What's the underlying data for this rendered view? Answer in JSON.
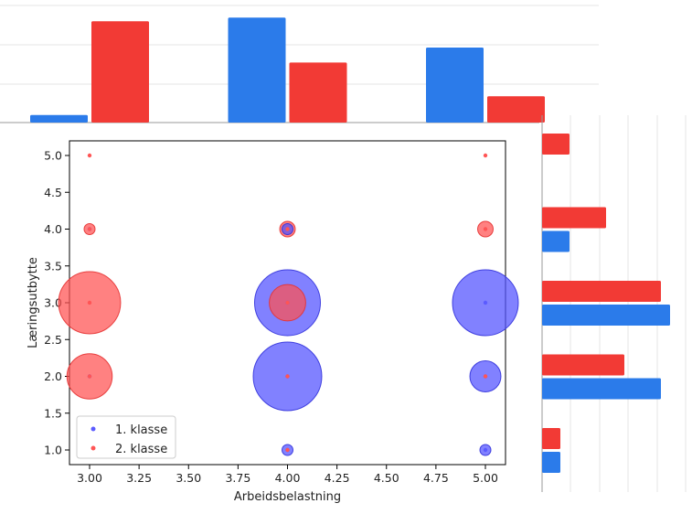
{
  "chart_data": [
    {
      "type": "scatter",
      "title": "",
      "xlabel": "Arbeidsbelastning",
      "ylabel": "Læringsutbytte",
      "xlim": [
        2.9,
        5.1
      ],
      "ylim": [
        0.8,
        5.2
      ],
      "x_ticks": [
        "3.00",
        "3.25",
        "3.50",
        "3.75",
        "4.00",
        "4.25",
        "4.50",
        "4.75",
        "5.00"
      ],
      "y_ticks": [
        "1.0",
        "1.5",
        "2.0",
        "2.5",
        "3.0",
        "3.5",
        "4.0",
        "4.5",
        "5.0"
      ],
      "grid": false,
      "legend_position": "lower-left",
      "note": "bubble area proportional to count; small dots mark each point",
      "series": [
        {
          "name": "1. klasse",
          "color": "#5b5bff",
          "points": [
            {
              "x": 3.0,
              "y": 2.0,
              "count": 0
            },
            {
              "x": 3.0,
              "y": 4.0,
              "count": 0
            },
            {
              "x": 4.0,
              "y": 1.0,
              "count": 1
            },
            {
              "x": 4.0,
              "y": 2.0,
              "count": 39
            },
            {
              "x": 4.0,
              "y": 3.0,
              "count": 36
            },
            {
              "x": 4.0,
              "y": 4.0,
              "count": 1
            },
            {
              "x": 5.0,
              "y": 1.0,
              "count": 1
            },
            {
              "x": 5.0,
              "y": 2.0,
              "count": 8
            },
            {
              "x": 5.0,
              "y": 3.0,
              "count": 36
            }
          ]
        },
        {
          "name": "2. klasse",
          "color": "#ff5555",
          "points": [
            {
              "x": 3.0,
              "y": 2.0,
              "count": 17
            },
            {
              "x": 3.0,
              "y": 3.0,
              "count": 32
            },
            {
              "x": 3.0,
              "y": 4.0,
              "count": 1
            },
            {
              "x": 3.0,
              "y": 5.0,
              "count": 0
            },
            {
              "x": 4.0,
              "y": 1.0,
              "count": 0
            },
            {
              "x": 4.0,
              "y": 2.0,
              "count": 0
            },
            {
              "x": 4.0,
              "y": 3.0,
              "count": 11
            },
            {
              "x": 4.0,
              "y": 4.0,
              "count": 2
            },
            {
              "x": 5.0,
              "y": 2.0,
              "count": 0
            },
            {
              "x": 5.0,
              "y": 4.0,
              "count": 2
            },
            {
              "x": 5.0,
              "y": 5.0,
              "count": 0
            }
          ]
        }
      ]
    },
    {
      "type": "bar",
      "orientation": "vertical",
      "position": "top marginal",
      "categories": [
        "3.00",
        "4.00",
        "5.00"
      ],
      "grid": true,
      "series": [
        {
          "name": "1. klasse",
          "color": "#2b7bea",
          "values": [
            2,
            28,
            20
          ]
        },
        {
          "name": "2. klasse",
          "color": "#f23a35",
          "values": [
            27,
            16,
            7
          ]
        }
      ]
    },
    {
      "type": "bar",
      "orientation": "horizontal",
      "position": "right marginal",
      "categories": [
        "1.0",
        "2.0",
        "3.0",
        "4.0",
        "5.0"
      ],
      "grid": true,
      "series": [
        {
          "name": "1. klasse",
          "color": "#2b7bea",
          "values": [
            2,
            13,
            14,
            3,
            0
          ]
        },
        {
          "name": "2. klasse",
          "color": "#f23a35",
          "values": [
            2,
            9,
            13,
            7,
            3
          ]
        }
      ]
    }
  ]
}
